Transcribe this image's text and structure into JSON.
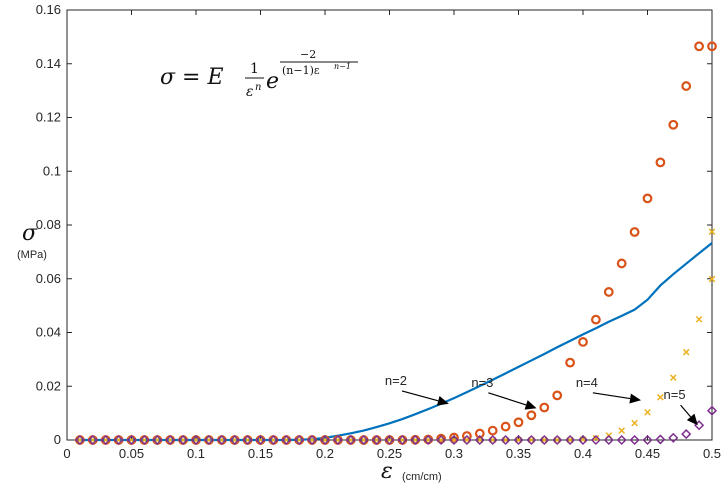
{
  "chart_data": {
    "type": "line",
    "xlim": [
      0,
      0.5
    ],
    "ylim": [
      0,
      0.16
    ],
    "x_ticks": [
      "0",
      "0.05",
      "0.1",
      "0.15",
      "0.2",
      "0.25",
      "0.3",
      "0.35",
      "0.4",
      "0.45",
      "0.5"
    ],
    "y_ticks": [
      "0",
      "0.02",
      "0.04",
      "0.06",
      "0.08",
      "0.1",
      "0.12",
      "0.14",
      "0.16"
    ],
    "ylabel_symbol": "σ",
    "ylabel_unit": "(MPa)",
    "xlabel_symbol": "ε",
    "xlabel_unit": "(cm/cm)",
    "equation": {
      "lhs": "σ = E",
      "frac_num": "1",
      "frac_den": "ε",
      "frac_den_exp": "n",
      "base": "e",
      "exp_num": "−2",
      "exp_den": "(n−1)ε",
      "exp_den_exp": "n−1"
    },
    "grid": false,
    "series": [
      {
        "marker": "line",
        "color": "#0072BD",
        "x": [
          0.01,
          0.02,
          0.03,
          0.04,
          0.05,
          0.06,
          0.07,
          0.08,
          0.09,
          0.1,
          0.11,
          0.12,
          0.13,
          0.14,
          0.15,
          0.16,
          0.17,
          0.18,
          0.19,
          0.2,
          0.21,
          0.22,
          0.23,
          0.24,
          0.25,
          0.26,
          0.27,
          0.28,
          0.29,
          0.3,
          0.31,
          0.32,
          0.33,
          0.34,
          0.35,
          0.36,
          0.37,
          0.38,
          0.39,
          0.4,
          0.41,
          0.42,
          0.43,
          0.44,
          0.45,
          0.46,
          0.47,
          0.48,
          0.49,
          0.5
        ],
        "y": [
          0,
          0,
          0,
          0,
          0,
          0,
          0,
          0,
          0,
          0,
          0,
          0,
          0,
          0,
          0,
          0,
          0,
          0.0001,
          0.0003,
          0.0008,
          0.0016,
          0.0025,
          0.0035,
          0.0048,
          0.0062,
          0.0078,
          0.0096,
          0.0115,
          0.0135,
          0.0156,
          0.0178,
          0.0201,
          0.0224,
          0.0248,
          0.0272,
          0.0296,
          0.032,
          0.0345,
          0.0369,
          0.0393,
          0.0416,
          0.044,
          0.0462,
          0.0485,
          0.0522,
          0.0575,
          0.0617,
          0.0656,
          0.0695,
          0.0733
        ]
      },
      {
        "marker": "circle",
        "color": "#D95319",
        "x": [
          0.01,
          0.02,
          0.03,
          0.04,
          0.05,
          0.06,
          0.07,
          0.08,
          0.09,
          0.1,
          0.11,
          0.12,
          0.13,
          0.14,
          0.15,
          0.16,
          0.17,
          0.18,
          0.19,
          0.2,
          0.21,
          0.22,
          0.23,
          0.24,
          0.25,
          0.26,
          0.27,
          0.28,
          0.29,
          0.3,
          0.31,
          0.32,
          0.33,
          0.34,
          0.35,
          0.36,
          0.37,
          0.38,
          0.39,
          0.4,
          0.41,
          0.42,
          0.43,
          0.44,
          0.45,
          0.46,
          0.47,
          0.48,
          0.49,
          0.5
        ],
        "y": [
          0,
          0,
          0,
          0,
          0,
          0,
          0,
          0,
          0,
          0,
          0,
          0,
          0,
          0,
          0,
          0,
          0,
          0,
          0,
          0,
          0,
          0,
          0,
          0,
          0,
          0,
          0.0001,
          0.0002,
          0.0005,
          0.0009,
          0.0015,
          0.0024,
          0.0035,
          0.005,
          0.0066,
          0.0092,
          0.0121,
          0.0166,
          0.0288,
          0.0365,
          0.0448,
          0.0551,
          0.0657,
          0.0774,
          0.0899,
          0.1033,
          0.1173,
          0.1317,
          0.1465,
          0.1465
        ]
      },
      {
        "marker": "x",
        "color": "#EDB120",
        "x": [
          0.01,
          0.02,
          0.03,
          0.04,
          0.05,
          0.06,
          0.07,
          0.08,
          0.09,
          0.1,
          0.11,
          0.12,
          0.13,
          0.14,
          0.15,
          0.16,
          0.17,
          0.18,
          0.19,
          0.2,
          0.21,
          0.22,
          0.23,
          0.24,
          0.25,
          0.26,
          0.27,
          0.28,
          0.29,
          0.3,
          0.31,
          0.32,
          0.33,
          0.34,
          0.35,
          0.36,
          0.37,
          0.38,
          0.39,
          0.4,
          0.41,
          0.42,
          0.43,
          0.44,
          0.45,
          0.46,
          0.47,
          0.48,
          0.49,
          0.5
        ],
        "y": [
          0,
          0,
          0,
          0,
          0,
          0,
          0,
          0,
          0,
          0,
          0,
          0,
          0,
          0,
          0,
          0,
          0,
          0,
          0,
          0,
          0,
          0,
          0,
          0,
          0,
          0,
          0,
          0,
          0,
          0,
          0,
          0,
          0,
          0,
          0,
          0,
          0,
          0,
          0,
          0.0002,
          0.0007,
          0.0017,
          0.0035,
          0.0063,
          0.0103,
          0.0159,
          0.0232,
          0.0327,
          0.0449,
          0.0599
        ]
      },
      {
        "marker": "diamond",
        "color": "#7E2F8E",
        "x": [
          0.01,
          0.02,
          0.03,
          0.04,
          0.05,
          0.06,
          0.07,
          0.08,
          0.09,
          0.1,
          0.11,
          0.12,
          0.13,
          0.14,
          0.15,
          0.16,
          0.17,
          0.18,
          0.19,
          0.2,
          0.21,
          0.22,
          0.23,
          0.24,
          0.25,
          0.26,
          0.27,
          0.28,
          0.29,
          0.3,
          0.31,
          0.32,
          0.33,
          0.34,
          0.35,
          0.36,
          0.37,
          0.38,
          0.39,
          0.4,
          0.41,
          0.42,
          0.43,
          0.44,
          0.45,
          0.46,
          0.47,
          0.48,
          0.49,
          0.5
        ],
        "y": [
          0,
          0,
          0,
          0,
          0,
          0,
          0,
          0,
          0,
          0,
          0,
          0,
          0,
          0,
          0,
          0,
          0,
          0,
          0,
          0,
          0,
          0,
          0,
          0,
          0,
          0,
          0,
          0,
          0,
          0,
          0,
          0,
          0,
          0,
          0,
          0,
          0,
          0,
          0,
          0,
          0,
          0,
          0,
          0,
          0,
          0.0002,
          0.0008,
          0.0022,
          0.0055,
          0.0109
        ]
      }
    ],
    "extra_points": [
      {
        "series": 2,
        "x": 0.5,
        "y": 0.0775
      }
    ],
    "annotations": [
      {
        "text": "n=2",
        "text_x": 0.255,
        "text_y": 0.0205,
        "arrow_to_x": 0.296,
        "arrow_to_y": 0.0135
      },
      {
        "text": "n=3",
        "text_x": 0.322,
        "text_y": 0.0198,
        "arrow_to_x": 0.364,
        "arrow_to_y": 0.0118
      },
      {
        "text": "n=4",
        "text_x": 0.403,
        "text_y": 0.0198,
        "arrow_to_x": 0.445,
        "arrow_to_y": 0.0148
      },
      {
        "text": "n=5",
        "text_x": 0.471,
        "text_y": 0.0152,
        "arrow_to_x": 0.489,
        "arrow_to_y": 0.0055
      }
    ]
  }
}
